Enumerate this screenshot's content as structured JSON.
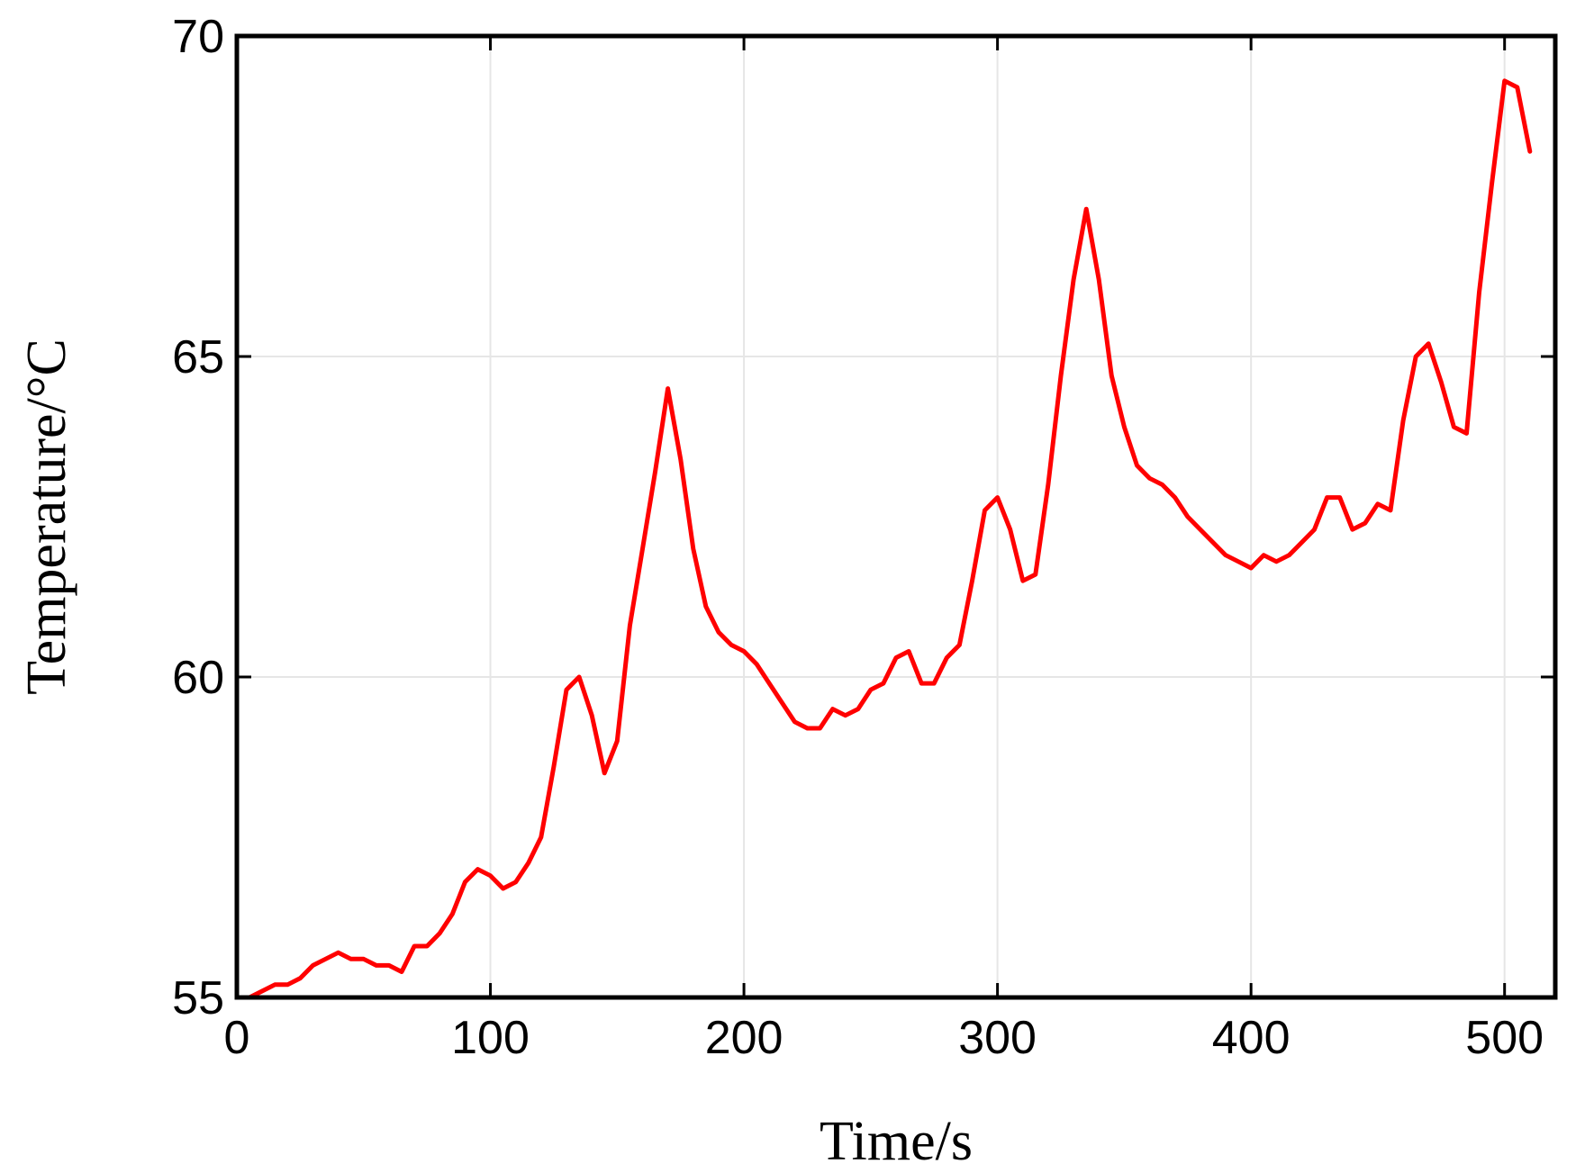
{
  "chart_data": {
    "type": "line",
    "title": "",
    "xlabel": "Time/s",
    "ylabel": "Temperature/°C",
    "xlim": [
      0,
      520
    ],
    "ylim": [
      55,
      70
    ],
    "xticks": [
      0,
      100,
      200,
      300,
      400,
      500
    ],
    "yticks": [
      55,
      60,
      65,
      70
    ],
    "grid": true,
    "series": [
      {
        "color": "#ff0000",
        "x": [
          0,
          5,
          10,
          15,
          20,
          25,
          30,
          35,
          40,
          45,
          50,
          55,
          60,
          65,
          70,
          75,
          80,
          85,
          90,
          95,
          100,
          105,
          110,
          115,
          120,
          125,
          130,
          135,
          140,
          145,
          150,
          155,
          160,
          165,
          170,
          175,
          180,
          185,
          190,
          195,
          200,
          205,
          210,
          215,
          220,
          225,
          230,
          235,
          240,
          245,
          250,
          255,
          260,
          265,
          270,
          275,
          280,
          285,
          290,
          295,
          300,
          305,
          310,
          315,
          320,
          325,
          330,
          335,
          340,
          345,
          350,
          355,
          360,
          365,
          370,
          375,
          380,
          385,
          390,
          395,
          400,
          405,
          410,
          415,
          420,
          425,
          430,
          435,
          440,
          445,
          450,
          455,
          460,
          465,
          470,
          475,
          480,
          485,
          490,
          495,
          500,
          505,
          510
        ],
        "y": [
          55.0,
          55.0,
          55.1,
          55.2,
          55.2,
          55.3,
          55.5,
          55.6,
          55.7,
          55.6,
          55.6,
          55.5,
          55.5,
          55.4,
          55.8,
          55.8,
          56.0,
          56.3,
          56.8,
          57.0,
          56.9,
          56.7,
          56.8,
          57.1,
          57.5,
          58.6,
          59.8,
          60.0,
          59.4,
          58.5,
          59.0,
          60.8,
          62.0,
          63.2,
          64.5,
          63.4,
          62.0,
          61.1,
          60.7,
          60.5,
          60.4,
          60.2,
          59.9,
          59.6,
          59.3,
          59.2,
          59.2,
          59.5,
          59.4,
          59.5,
          59.8,
          59.9,
          60.3,
          60.4,
          59.9,
          59.9,
          60.3,
          60.5,
          61.5,
          62.6,
          62.8,
          62.3,
          61.5,
          61.6,
          63.0,
          64.7,
          66.2,
          67.3,
          66.2,
          64.7,
          63.9,
          63.3,
          63.1,
          63.0,
          62.8,
          62.5,
          62.3,
          62.1,
          61.9,
          61.8,
          61.7,
          61.9,
          61.8,
          61.9,
          62.1,
          62.3,
          62.8,
          62.8,
          62.3,
          62.4,
          62.7,
          62.6,
          64.0,
          65.0,
          65.2,
          64.6,
          63.9,
          63.8,
          66.0,
          67.7,
          69.3,
          69.2,
          68.2
        ]
      }
    ]
  }
}
